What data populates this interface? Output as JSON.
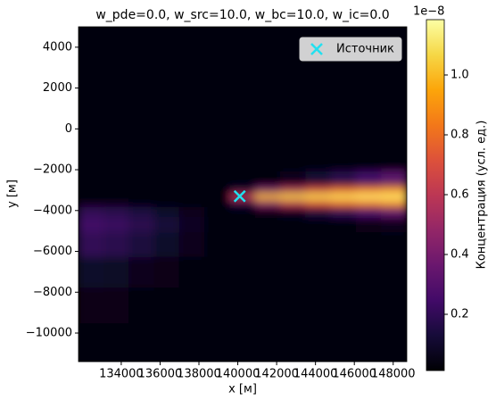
{
  "chart_data": {
    "type": "heatmap",
    "title": "w_pde=0.0, w_src=10.0, w_bc=10.0, w_ic=0.0",
    "xlabel": "x [м]",
    "ylabel": "y [м]",
    "colormap": "inferno",
    "x": [
      132450,
      133750,
      135050,
      136350,
      137650,
      138950,
      140250,
      141550,
      142850,
      144150,
      145450,
      146750,
      148050
    ],
    "y": [
      -10500,
      -8500,
      -7000,
      -5500,
      -4600,
      -4000,
      -3600,
      -3300,
      -3000,
      -2600,
      -1500,
      1000,
      3700
    ],
    "z": [
      [
        0.02,
        0.02,
        0.02,
        0.02,
        0.02,
        0.02,
        0.02,
        0.02,
        0.02,
        0.02,
        0.02,
        0.02,
        0.02
      ],
      [
        0.05,
        0.05,
        0.04,
        0.03,
        0.02,
        0.02,
        0.02,
        0.02,
        0.02,
        0.02,
        0.02,
        0.02,
        0.02
      ],
      [
        0.1,
        0.09,
        0.07,
        0.05,
        0.03,
        0.02,
        0.02,
        0.02,
        0.02,
        0.02,
        0.02,
        0.02,
        0.02
      ],
      [
        0.2,
        0.18,
        0.14,
        0.1,
        0.06,
        0.03,
        0.02,
        0.02,
        0.02,
        0.02,
        0.02,
        0.02,
        0.02
      ],
      [
        0.24,
        0.22,
        0.18,
        0.13,
        0.08,
        0.04,
        0.02,
        0.02,
        0.02,
        0.03,
        0.04,
        0.05,
        0.06
      ],
      [
        0.2,
        0.18,
        0.15,
        0.1,
        0.06,
        0.03,
        0.03,
        0.05,
        0.08,
        0.14,
        0.2,
        0.28,
        0.35
      ],
      [
        0.05,
        0.05,
        0.04,
        0.03,
        0.02,
        0.02,
        0.15,
        0.45,
        0.6,
        0.72,
        0.8,
        0.85,
        0.9
      ],
      [
        0.02,
        0.02,
        0.02,
        0.02,
        0.02,
        0.02,
        0.6,
        1.0,
        1.05,
        1.08,
        1.1,
        1.12,
        1.12
      ],
      [
        0.02,
        0.02,
        0.02,
        0.02,
        0.02,
        0.02,
        0.12,
        0.4,
        0.55,
        0.68,
        0.78,
        0.85,
        0.9
      ],
      [
        0.02,
        0.02,
        0.02,
        0.02,
        0.02,
        0.02,
        0.02,
        0.04,
        0.07,
        0.12,
        0.18,
        0.25,
        0.32
      ],
      [
        0.02,
        0.02,
        0.02,
        0.02,
        0.02,
        0.02,
        0.02,
        0.02,
        0.02,
        0.02,
        0.02,
        0.02,
        0.03
      ],
      [
        0.02,
        0.02,
        0.02,
        0.02,
        0.02,
        0.02,
        0.02,
        0.02,
        0.02,
        0.02,
        0.02,
        0.02,
        0.02
      ],
      [
        0.02,
        0.02,
        0.02,
        0.02,
        0.02,
        0.02,
        0.02,
        0.02,
        0.02,
        0.02,
        0.02,
        0.02,
        0.02
      ]
    ],
    "xlim": [
      131800,
      148700
    ],
    "ylim": [
      -11400,
      5000
    ],
    "xticks": [
      134000,
      136000,
      138000,
      140000,
      142000,
      144000,
      146000,
      148000
    ],
    "yticks": [
      {
        "value": -10000,
        "label": "−10000"
      },
      {
        "value": -8000,
        "label": "−8000"
      },
      {
        "value": -6000,
        "label": "−6000"
      },
      {
        "value": -4000,
        "label": "−4000"
      },
      {
        "value": -2000,
        "label": "−2000"
      },
      0,
      2000,
      4000
    ],
    "clim": [
      0.012,
      1.185
    ],
    "cticks": [
      0.2,
      0.4,
      0.6,
      0.8,
      {
        "value": 1.0,
        "label": "1.0"
      }
    ],
    "colorbar_offset": "1e−8",
    "colorbar_label": "Концентрация (усл. ед.)",
    "series": [
      {
        "name": "Источник",
        "color": "#22e0f0",
        "x": [
          140100
        ],
        "values": [
          -3300
        ]
      }
    ],
    "legend": "upper right"
  }
}
